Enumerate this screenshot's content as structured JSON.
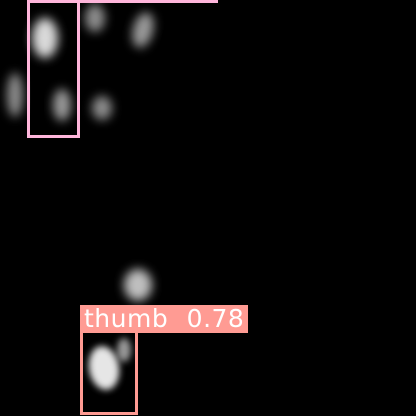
{
  "detections": [
    {
      "label": "",
      "score_text": "",
      "color": "#ffb6db"
    },
    {
      "label": "thumb",
      "score_text": "0.78",
      "color": "#ff9b93"
    }
  ],
  "scene": {
    "background": "#000000",
    "blob_color": "#ffffff"
  }
}
